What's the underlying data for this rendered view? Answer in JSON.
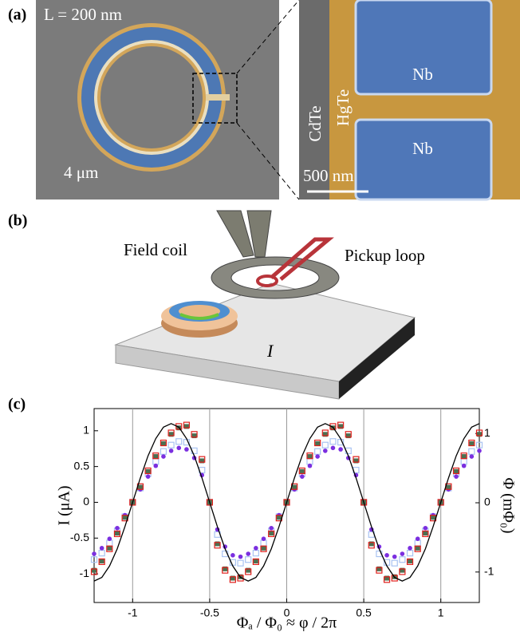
{
  "panels": {
    "a": {
      "label": "(a)",
      "length": "L = 200 nm",
      "size": "4 μm",
      "nb_top": "Nb",
      "nb_bottom": "Nb",
      "cdte": "CdTe",
      "hgte": "HgTe",
      "scale": "500 nm"
    },
    "b": {
      "label": "(b)",
      "field_coil": "Field coil",
      "pickup_loop": "Pickup loop",
      "current": "I"
    },
    "c": {
      "label": "(c)"
    }
  },
  "chart_data": {
    "type": "scatter",
    "xlabel": "Φₐ / Φ₀ ≈ φ / 2π",
    "ylabel": "I (μA)",
    "y2label": "Φ (mΦ₀)",
    "xlim": [
      -1.25,
      1.25
    ],
    "xticks": [
      -1,
      -0.5,
      0,
      0.5,
      1
    ],
    "ylim": [
      -1.4,
      1.31
    ],
    "yticks": [
      1,
      0.5,
      0,
      -0.5,
      -1
    ],
    "y2lim": [
      -1.44,
      1.36
    ],
    "y2ticks": [
      1,
      0,
      -1
    ],
    "grid": "x",
    "x": [
      -1.25,
      -1.2,
      -1.15,
      -1.1,
      -1.05,
      -1,
      -0.95,
      -0.9,
      -0.85,
      -0.8,
      -0.75,
      -0.7,
      -0.65,
      -0.6,
      -0.55,
      -0.5,
      -0.45,
      -0.4,
      -0.35,
      -0.3,
      -0.25,
      -0.2,
      -0.15,
      -0.1,
      -0.05,
      0,
      0.05,
      0.1,
      0.15,
      0.2,
      0.25,
      0.3,
      0.35,
      0.4,
      0.45,
      0.5,
      0.55,
      0.6,
      0.65,
      0.7,
      0.75,
      0.8,
      0.85,
      0.9,
      0.95,
      1,
      1.05,
      1.1,
      1.15,
      1.2,
      1.25
    ],
    "series": [
      {
        "color": "#a9c3f2",
        "style": "open-square",
        "values": [
          -0.8,
          -0.71,
          -0.57,
          -0.4,
          -0.2,
          0,
          0.2,
          0.4,
          0.57,
          0.71,
          0.8,
          0.85,
          0.84,
          0.72,
          0.45,
          0,
          -0.45,
          -0.72,
          -0.84,
          -0.85,
          -0.8,
          -0.71,
          -0.57,
          -0.4,
          -0.2,
          0,
          0.2,
          0.4,
          0.57,
          0.71,
          0.8,
          0.85,
          0.84,
          0.72,
          0.45,
          0,
          -0.45,
          -0.72,
          -0.84,
          -0.85,
          -0.8,
          -0.71,
          -0.57,
          -0.4,
          -0.2,
          0,
          0.2,
          0.4,
          0.57,
          0.71,
          0.8
        ]
      },
      {
        "color": "#7b2fe0",
        "style": "dot",
        "values": [
          -0.72,
          -0.64,
          -0.51,
          -0.36,
          -0.18,
          0,
          0.18,
          0.36,
          0.51,
          0.64,
          0.72,
          0.76,
          0.74,
          0.62,
          0.38,
          0,
          -0.38,
          -0.62,
          -0.74,
          -0.76,
          -0.72,
          -0.64,
          -0.51,
          -0.36,
          -0.18,
          0,
          0.18,
          0.36,
          0.51,
          0.64,
          0.72,
          0.76,
          0.74,
          0.62,
          0.38,
          0,
          -0.38,
          -0.62,
          -0.74,
          -0.76,
          -0.72,
          -0.64,
          -0.51,
          -0.36,
          -0.18,
          0,
          0.18,
          0.36,
          0.51,
          0.64,
          0.72
        ]
      },
      {
        "color": "#4d6f52",
        "style": "filled-square",
        "values": [
          -0.95,
          -0.82,
          -0.64,
          -0.43,
          -0.21,
          0,
          0.21,
          0.43,
          0.64,
          0.82,
          0.95,
          1.04,
          1.06,
          0.93,
          0.58,
          0,
          -0.58,
          -0.93,
          -1.06,
          -1.04,
          -0.95,
          -0.82,
          -0.64,
          -0.43,
          -0.21,
          0,
          0.21,
          0.43,
          0.64,
          0.82,
          0.95,
          1.04,
          1.06,
          0.93,
          0.58,
          0,
          -0.58,
          -0.93,
          -1.06,
          -1.04,
          -0.95,
          -0.82,
          -0.64,
          -0.43,
          -0.21,
          0,
          0.21,
          0.43,
          0.64,
          0.82,
          0.95
        ]
      },
      {
        "color": "#e0201c",
        "style": "open-square",
        "values": [
          -0.97,
          -0.83,
          -0.65,
          -0.44,
          -0.22,
          0,
          0.22,
          0.44,
          0.65,
          0.83,
          0.97,
          1.06,
          1.08,
          0.95,
          0.6,
          0,
          -0.6,
          -0.95,
          -1.08,
          -1.06,
          -0.97,
          -0.83,
          -0.65,
          -0.44,
          -0.22,
          0,
          0.22,
          0.44,
          0.65,
          0.83,
          0.97,
          1.06,
          1.08,
          0.95,
          0.6,
          0,
          -0.6,
          -0.95,
          -1.08,
          -1.06,
          -0.97,
          -0.83,
          -0.65,
          -0.44,
          -0.22,
          0,
          0.22,
          0.44,
          0.65,
          0.83,
          0.97
        ]
      },
      {
        "color": "#000000",
        "style": "line",
        "values": [
          -1.1,
          -1.05,
          -0.89,
          -0.65,
          -0.34,
          0,
          0.34,
          0.65,
          0.89,
          1.05,
          1.1,
          1.05,
          0.89,
          0.65,
          0.34,
          0,
          -0.34,
          -0.65,
          -0.89,
          -1.05,
          -1.1,
          -1.05,
          -0.89,
          -0.65,
          -0.34,
          0,
          0.34,
          0.65,
          0.89,
          1.05,
          1.1,
          1.05,
          0.89,
          0.65,
          0.34,
          0,
          -0.34,
          -0.65,
          -0.89,
          -1.05,
          -1.1,
          -1.05,
          -0.89,
          -0.65,
          -0.34,
          0,
          0.34,
          0.65,
          0.89,
          1.05,
          1.1
        ]
      }
    ]
  }
}
